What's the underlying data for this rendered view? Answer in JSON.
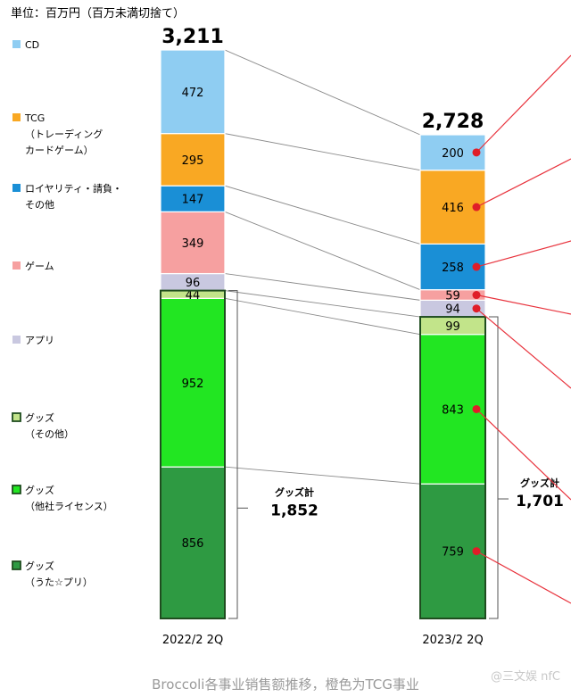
{
  "unit_label": "単位：百万円（百万未満切捨て）",
  "caption": "Broccoli各事业销售额推移，橙色为TCG事业",
  "watermark": "@三文娱 nfC",
  "chart_data": {
    "type": "bar",
    "stacked": true,
    "categories": [
      "2022/2 2Q",
      "2023/2 2Q"
    ],
    "totals": [
      "3,211",
      "2,728"
    ],
    "series": [
      {
        "name": "グッズ（うた☆プリ）",
        "legend_lines": [
          "グッズ",
          "（うた☆プリ）"
        ],
        "values": [
          856,
          759
        ],
        "color": "#2e9a42",
        "marker": "square"
      },
      {
        "name": "グッズ（他社ライセンス）",
        "legend_lines": [
          "グッズ",
          "（他社ライセンス）"
        ],
        "values": [
          952,
          843
        ],
        "color": "#22e622",
        "marker": "square"
      },
      {
        "name": "グッズ（その他）",
        "legend_lines": [
          "グッズ",
          "（その他）"
        ],
        "values": [
          44,
          99
        ],
        "color": "#c2e48a",
        "marker": "square"
      },
      {
        "name": "アプリ",
        "legend_lines": [
          "アプリ"
        ],
        "values": [
          96,
          94
        ],
        "color": "#c9c8e0",
        "marker": "dot"
      },
      {
        "name": "ゲーム",
        "legend_lines": [
          "ゲーム"
        ],
        "values": [
          349,
          59
        ],
        "color": "#f6a0a0",
        "marker": "dot"
      },
      {
        "name": "ロイヤリティ・請負・その他",
        "legend_lines": [
          "ロイヤリティ・請負・",
          "その他"
        ],
        "values": [
          147,
          258
        ],
        "color": "#1a8fd6",
        "marker": "dot"
      },
      {
        "name": "TCG（トレーディングカードゲーム）",
        "legend_lines": [
          "TCG",
          "（トレーディング",
          "カードゲーム）"
        ],
        "values": [
          295,
          416
        ],
        "color": "#f9a823",
        "marker": "dot"
      },
      {
        "name": "CD",
        "legend_lines": [
          "CD"
        ],
        "values": [
          472,
          200
        ],
        "color": "#8fcdf2",
        "marker": "dot"
      }
    ],
    "goods_subtotal": {
      "label": "グッズ計",
      "values": [
        "1,852",
        "1,701"
      ]
    }
  }
}
